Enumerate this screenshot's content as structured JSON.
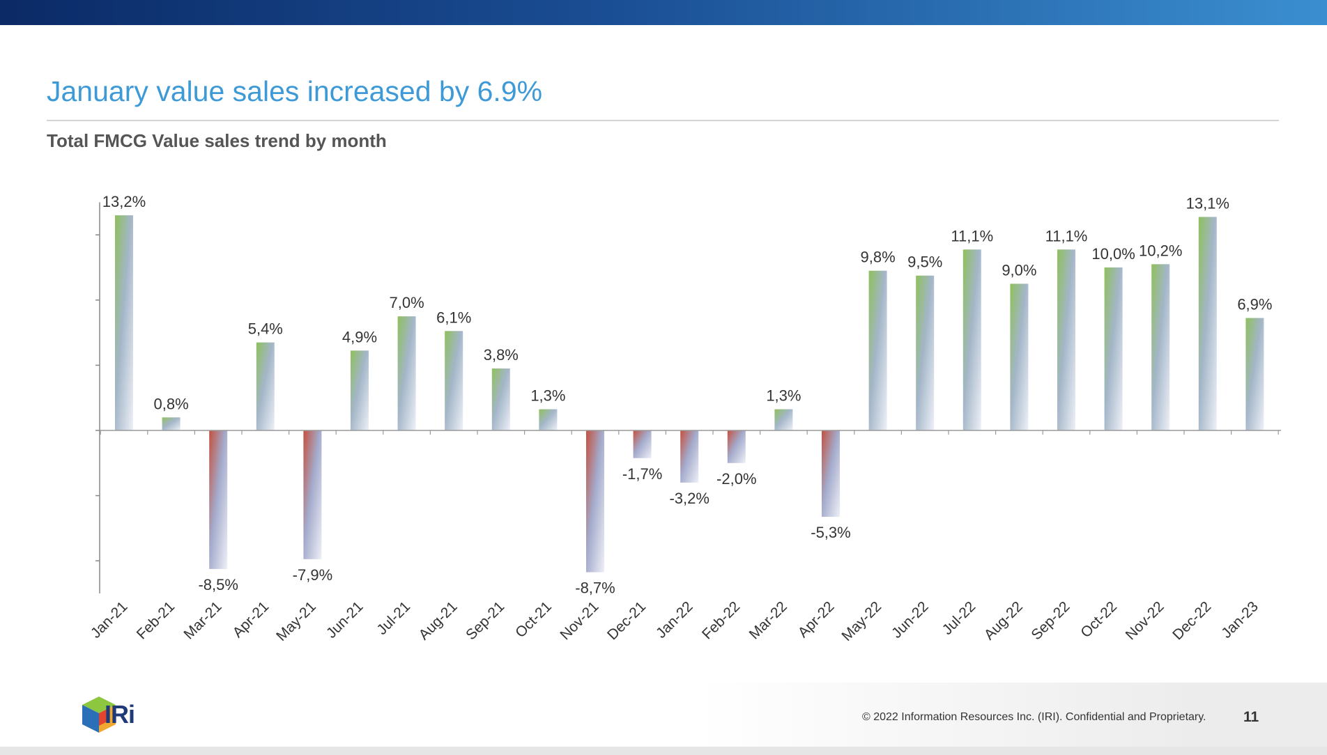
{
  "header": {
    "title": "January value sales increased by 6.9%",
    "subtitle": "Total FMCG Value sales trend by month"
  },
  "chart_data": {
    "type": "bar",
    "title": "",
    "xlabel": "",
    "ylabel": "",
    "ylim": [
      -10,
      14
    ],
    "categories": [
      "Jan-21",
      "Feb-21",
      "Mar-21",
      "Apr-21",
      "May-21",
      "Jun-21",
      "Jul-21",
      "Aug-21",
      "Sep-21",
      "Oct-21",
      "Nov-21",
      "Dec-21",
      "Jan-22",
      "Feb-22",
      "Mar-22",
      "Apr-22",
      "May-22",
      "Jun-22",
      "Jul-22",
      "Aug-22",
      "Sep-22",
      "Oct-22",
      "Nov-22",
      "Dec-22",
      "Jan-23"
    ],
    "values": [
      13.2,
      0.8,
      -8.5,
      5.4,
      -7.9,
      4.9,
      7.0,
      6.1,
      3.8,
      1.3,
      -8.7,
      -1.7,
      -3.2,
      -2.0,
      1.3,
      -5.3,
      9.8,
      9.5,
      11.1,
      9.0,
      11.1,
      10.0,
      10.2,
      13.1,
      6.9
    ],
    "data_labels": [
      "13,2%",
      "0,8%",
      "-8,5%",
      "5,4%",
      "-7,9%",
      "4,9%",
      "7,0%",
      "6,1%",
      "3,8%",
      "1,3%",
      "-8,7%",
      "-1,7%",
      "-3,2%",
      "-2,0%",
      "1,3%",
      "-5,3%",
      "9,8%",
      "9,5%",
      "11,1%",
      "9,0%",
      "11,1%",
      "10,0%",
      "10,2%",
      "13,1%",
      "6,9%"
    ],
    "grid": false,
    "colors": {
      "positive": "#8fc05c",
      "negative": "#c5503e",
      "fade": "#aeb8d4"
    }
  },
  "footer": {
    "copyright": "© 2022 Information Resources Inc. (IRI). Confidential and Proprietary.",
    "page_number": "11",
    "logo_text": "IRi"
  }
}
